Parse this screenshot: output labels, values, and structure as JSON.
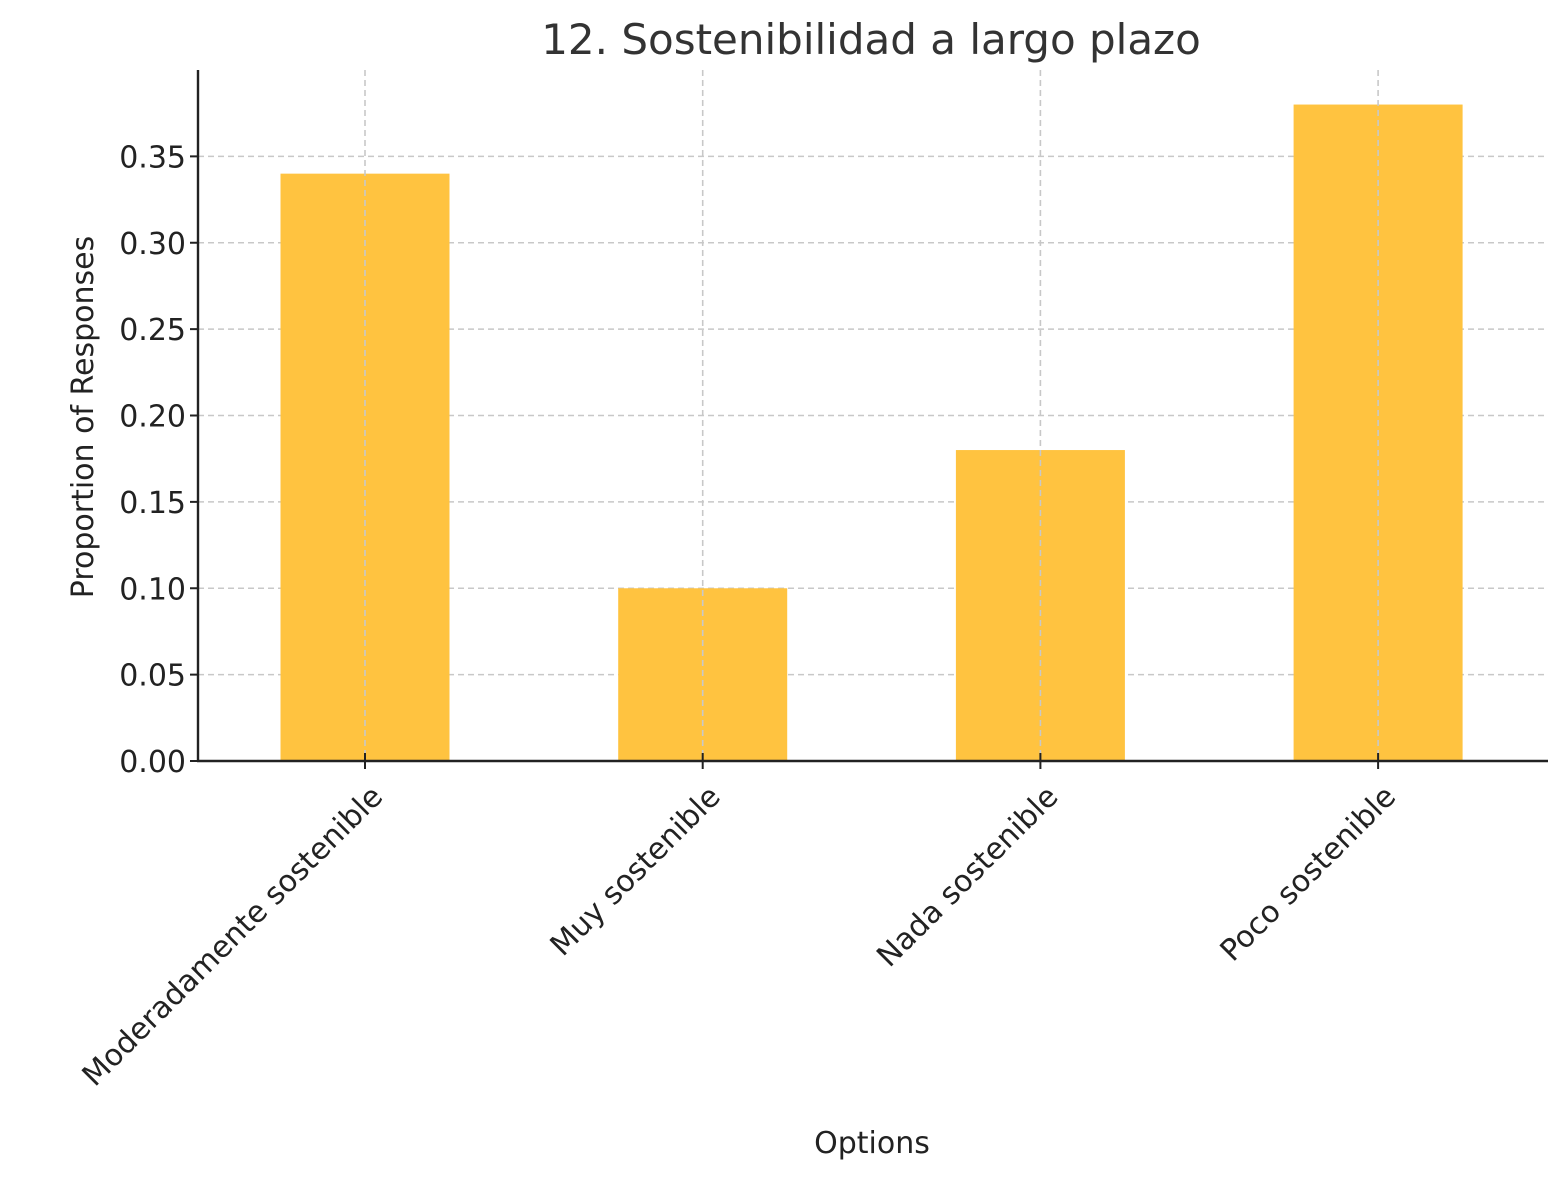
{
  "chart_data": {
    "type": "bar",
    "title": "12. Sostenibilidad a largo plazo",
    "xlabel": "Options",
    "ylabel": "Proportion of Responses",
    "categories": [
      "Moderadamente sostenible",
      "Muy sostenible",
      "Nada sostenible",
      "Poco sostenible"
    ],
    "values": [
      0.34,
      0.1,
      0.18,
      0.38
    ],
    "ylim": [
      0,
      0.4
    ],
    "yticks": [
      0.0,
      0.05,
      0.1,
      0.15,
      0.2,
      0.25,
      0.3,
      0.35
    ],
    "ytick_labels": [
      "0.00",
      "0.05",
      "0.10",
      "0.15",
      "0.20",
      "0.25",
      "0.30",
      "0.35"
    ],
    "grid": true,
    "bar_color": "#FFC340",
    "xtick_rotation_deg": 45
  }
}
